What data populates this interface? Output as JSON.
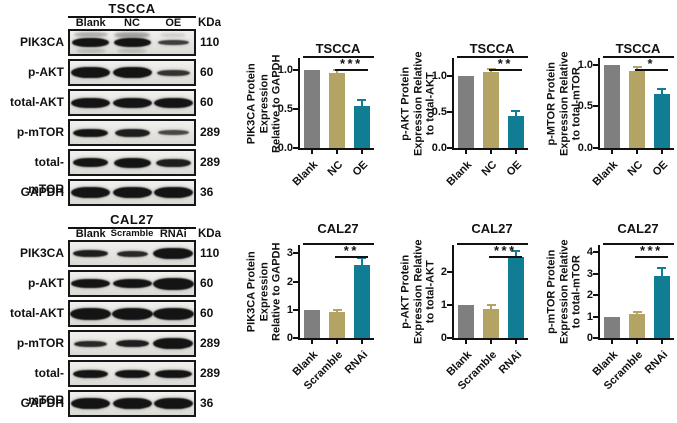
{
  "western_blots": [
    {
      "cell_line": "TSCCA",
      "lanes": [
        "Blank",
        "NC",
        "OE"
      ],
      "kda_header": "KDa",
      "rows": [
        {
          "protein": "PIK3CA",
          "kda": "110",
          "bands": [
            [
              37,
              9,
              1
            ],
            [
              37,
              9,
              1
            ],
            [
              31,
              5,
              0.8
            ]
          ],
          "smudges": [
            [
              0,
              -8,
              34,
              5,
              0.3
            ],
            [
              1,
              -8,
              36,
              6,
              0.35
            ],
            [
              2,
              -8,
              26,
              4,
              0.15
            ],
            [
              0,
              8,
              30,
              4,
              0.2
            ],
            [
              1,
              8,
              30,
              4,
              0.2
            ]
          ]
        },
        {
          "protein": "p-AKT",
          "kda": "60",
          "bands": [
            [
              39,
              11,
              1
            ],
            [
              39,
              11,
              1
            ],
            [
              33,
              6,
              0.85
            ]
          ]
        },
        {
          "protein": "total-AKT",
          "kda": "60",
          "bands": [
            [
              39,
              10,
              1
            ],
            [
              39,
              10,
              1
            ],
            [
              39,
              10,
              1
            ]
          ]
        },
        {
          "protein": "p-mTOR",
          "kda": "289",
          "bands": [
            [
              35,
              8,
              1
            ],
            [
              35,
              8,
              0.95
            ],
            [
              31,
              5,
              0.75
            ]
          ]
        },
        {
          "protein": "total-mTOR",
          "kda": "289",
          "bands": [
            [
              35,
              9,
              1
            ],
            [
              37,
              10,
              1
            ],
            [
              35,
              8,
              0.95
            ]
          ]
        },
        {
          "protein": "GAPDH",
          "kda": "36",
          "bands": [
            [
              39,
              11,
              1
            ],
            [
              39,
              11,
              1
            ],
            [
              39,
              11,
              1
            ]
          ]
        }
      ]
    },
    {
      "cell_line": "CAL27",
      "lanes": [
        "Blank",
        "Scramble",
        "RNAi"
      ],
      "kda_header": "KDa",
      "rows": [
        {
          "protein": "PIK3CA",
          "kda": "110",
          "bands": [
            [
              35,
              7,
              0.95
            ],
            [
              31,
              6,
              0.9
            ],
            [
              40,
              11,
              1
            ]
          ]
        },
        {
          "protein": "p-AKT",
          "kda": "60",
          "bands": [
            [
              39,
              9,
              1
            ],
            [
              39,
              9,
              1
            ],
            [
              41,
              12,
              1
            ]
          ]
        },
        {
          "protein": "total-AKT",
          "kda": "60",
          "bands": [
            [
              41,
              12,
              1
            ],
            [
              41,
              12,
              1
            ],
            [
              41,
              12,
              1
            ]
          ]
        },
        {
          "protein": "p-mTOR",
          "kda": "289",
          "bands": [
            [
              33,
              6,
              0.9
            ],
            [
              33,
              7,
              0.95
            ],
            [
              40,
              11,
              1
            ]
          ]
        },
        {
          "protein": "total-mTOR",
          "kda": "289",
          "bands": [
            [
              35,
              8,
              1
            ],
            [
              35,
              8,
              1
            ],
            [
              37,
              8,
              1
            ]
          ]
        },
        {
          "protein": "GAPDH",
          "kda": "36",
          "bands": [
            [
              39,
              11,
              1
            ],
            [
              39,
              11,
              1
            ],
            [
              39,
              11,
              1
            ]
          ]
        }
      ]
    }
  ],
  "chart_data": [
    {
      "type": "bar",
      "title": "TSCCA",
      "ylabel": "PIK3CA Protein Expression Relative to GAPDH",
      "ylabel_lines": [
        "PIK3CA Protein",
        "Expression",
        "Relative to GAPDH"
      ],
      "categories": [
        "Blank",
        "NC",
        "OE"
      ],
      "values": [
        1.0,
        0.96,
        0.54
      ],
      "errors": [
        0,
        0.02,
        0.06
      ],
      "bar_colors": [
        "#7f7f7f",
        "#b3a466",
        "#117d94"
      ],
      "yticks": [
        0,
        0.5,
        1.0
      ],
      "ytick_labels": [
        "0.0",
        "0.5",
        "1.0"
      ],
      "ylim": [
        0,
        1.15
      ],
      "significance": "***",
      "significance_between": [
        "NC",
        "OE"
      ]
    },
    {
      "type": "bar",
      "title": "TSCCA",
      "ylabel": "p-AKT Protein Expression Relative to total-AKT",
      "ylabel_lines": [
        "p-AKT Protein",
        "Expression Relative",
        "to total-AKT"
      ],
      "categories": [
        "Blank",
        "NC",
        "OE"
      ],
      "values": [
        1.0,
        1.06,
        0.45
      ],
      "errors": [
        0,
        0.03,
        0.05
      ],
      "bar_colors": [
        "#7f7f7f",
        "#b3a466",
        "#117d94"
      ],
      "yticks": [
        0,
        0.5,
        1.0
      ],
      "ytick_labels": [
        "0.0",
        "0.5",
        "1.0"
      ],
      "ylim": [
        0,
        1.25
      ],
      "significance": "**",
      "significance_between": [
        "NC",
        "OE"
      ]
    },
    {
      "type": "bar",
      "title": "TSCCA",
      "ylabel": "p-MTOR Protein Expression Relative to total-mTOR",
      "ylabel_lines": [
        "p-MTOR Protein",
        "Expression Relative",
        "to total-mTOR"
      ],
      "categories": [
        "Blank",
        "NC",
        "OE"
      ],
      "values": [
        1.0,
        0.93,
        0.65
      ],
      "errors": [
        0,
        0.03,
        0.05
      ],
      "bar_colors": [
        "#7f7f7f",
        "#b3a466",
        "#117d94"
      ],
      "yticks": [
        0,
        0.5,
        1.0
      ],
      "ytick_labels": [
        "0.0",
        "0.5",
        "1.0"
      ],
      "ylim": [
        0,
        1.08
      ],
      "significance": "*",
      "significance_between": [
        "NC",
        "OE"
      ]
    },
    {
      "type": "bar",
      "title": "CAL27",
      "ylabel": "PIK3CA Protein Expression Relative to GAPDH",
      "ylabel_lines": [
        "PIK3CA Protein",
        "Expression",
        "Relative to GAPDH"
      ],
      "categories": [
        "Blank",
        "Scramble",
        "RNAi"
      ],
      "values": [
        1.0,
        0.93,
        2.6
      ],
      "errors": [
        0,
        0.04,
        0.22
      ],
      "bar_colors": [
        "#7f7f7f",
        "#b3a466",
        "#117d94"
      ],
      "yticks": [
        0,
        1,
        2,
        3
      ],
      "ytick_labels": [
        "0",
        "1",
        "2",
        "3"
      ],
      "ylim": [
        0,
        3.3
      ],
      "significance": "**",
      "significance_between": [
        "Scramble",
        "RNAi"
      ]
    },
    {
      "type": "bar",
      "title": "CAL27",
      "ylabel": "p-AKT Protein Expression Relative to total-AKT",
      "ylabel_lines": [
        "p-AKT Protein",
        "Expression Relative",
        "to total-AKT"
      ],
      "categories": [
        "Blank",
        "Scramble",
        "RNAi"
      ],
      "values": [
        1.0,
        0.88,
        2.45
      ],
      "errors": [
        0,
        0.08,
        0.15
      ],
      "bar_colors": [
        "#7f7f7f",
        "#b3a466",
        "#117d94"
      ],
      "yticks": [
        0,
        1,
        2
      ],
      "ytick_labels": [
        "0",
        "1",
        "2"
      ],
      "ylim": [
        0,
        2.8
      ],
      "significance": "***",
      "significance_between": [
        "Scramble",
        "RNAi"
      ]
    },
    {
      "type": "bar",
      "title": "CAL27",
      "ylabel": "p-mTOR Protein Expression Relative to total-mTOR",
      "ylabel_lines": [
        "p-mTOR Protein",
        "Expression Relative",
        "to total-mTOR"
      ],
      "categories": [
        "Blank",
        "Scramble",
        "RNAi"
      ],
      "values": [
        1.0,
        1.12,
        2.9
      ],
      "errors": [
        0,
        0.07,
        0.32
      ],
      "bar_colors": [
        "#7f7f7f",
        "#b3a466",
        "#117d94"
      ],
      "yticks": [
        0,
        1,
        2,
        3,
        4
      ],
      "ytick_labels": [
        "0",
        "1",
        "2",
        "3",
        "4"
      ],
      "ylim": [
        0,
        4.35
      ],
      "significance": "***",
      "significance_between": [
        "Scramble",
        "RNAi"
      ]
    }
  ]
}
